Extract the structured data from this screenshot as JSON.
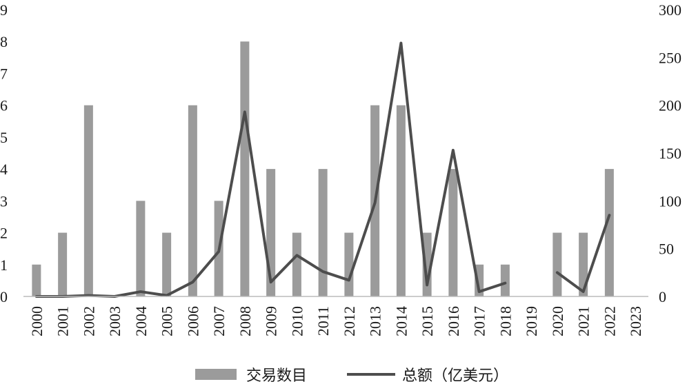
{
  "chart_data": {
    "type": "bar",
    "categories": [
      "2000",
      "2001",
      "2002",
      "2003",
      "2004",
      "2005",
      "2006",
      "2007",
      "2008",
      "2009",
      "2010",
      "2011",
      "2012",
      "2013",
      "2014",
      "2015",
      "2016",
      "2017",
      "2018",
      "2019",
      "2020",
      "2021",
      "2022",
      "2023"
    ],
    "series": [
      {
        "name": "交易数目",
        "type": "bar",
        "axis": "left",
        "color": "#9b9b9b",
        "values": [
          1,
          2,
          6,
          0,
          3,
          2,
          6,
          3,
          8,
          4,
          2,
          4,
          2,
          6,
          6,
          2,
          4,
          1,
          1,
          0,
          2,
          2,
          4,
          0
        ]
      },
      {
        "name": "总额（亿美元）",
        "type": "line",
        "axis": "right",
        "color": "#4d4d4d",
        "values": [
          0,
          0,
          1,
          0,
          5,
          1,
          15,
          47,
          193,
          15,
          43,
          26,
          17,
          98,
          265,
          12,
          153,
          5,
          14,
          null,
          25,
          5,
          85,
          null
        ]
      }
    ],
    "y_left": {
      "min": 0,
      "max": 9,
      "ticks": [
        "0",
        "1",
        "2",
        "3",
        "4",
        "5",
        "6",
        "7",
        "8",
        "9"
      ]
    },
    "y_right": {
      "min": 0,
      "max": 300,
      "ticks": [
        "0",
        "50",
        "100",
        "150",
        "200",
        "250",
        "300"
      ]
    },
    "grid": false,
    "legend_position": "bottom"
  }
}
